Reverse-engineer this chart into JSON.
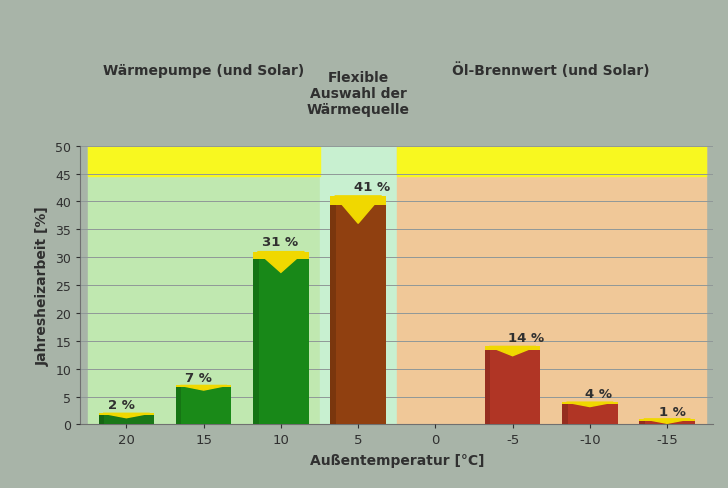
{
  "x_positions": [
    20,
    15,
    10,
    5,
    0,
    -5,
    -10,
    -15
  ],
  "values": [
    2,
    7,
    31,
    41,
    0,
    14,
    4,
    1
  ],
  "labels": [
    "2 %",
    "7 %",
    "31 %",
    "41 %",
    "",
    "14 %",
    "4 %",
    "1 %"
  ],
  "label_xoff": [
    1.2,
    1.2,
    1.2,
    0.3,
    0,
    0.3,
    0.3,
    0.5
  ],
  "label_yoff": [
    0.4,
    0.3,
    0.6,
    0.6,
    0,
    0.4,
    0.3,
    0.2
  ],
  "main_colors": [
    "#1a7818",
    "#1a8a18",
    "#188818",
    "#904010",
    null,
    "#b03525",
    "#b03525",
    "#b03525"
  ],
  "yellow_color": "#f0d800",
  "bar_width": 3.6,
  "zone_left_bg": "#c0e8b0",
  "zone_left_yellow": "#f8f820",
  "zone_mid_bg": "#c8f0d0",
  "zone_right_bg": "#f0c898",
  "zone_right_yellow": "#f8f820",
  "bg_color": "#a8b4a8",
  "title_left": "Wärmepumpe (und Solar)",
  "title_middle": "Flexible\nAuswahl der\nWärmequelle",
  "title_right": "Öl-Brennwert (und Solar)",
  "xlabel": "Außentemperatur [°C]",
  "ylabel": "Jahresheizarbeit [%]",
  "ylim": [
    0,
    50
  ],
  "yticks": [
    0,
    5,
    10,
    15,
    20,
    25,
    30,
    35,
    40,
    45,
    50
  ],
  "xticks": [
    20,
    15,
    10,
    5,
    0,
    -5,
    -10,
    -15
  ],
  "xlim_left": 23.0,
  "xlim_right": -18.0,
  "zone_left_xmin": 7.5,
  "zone_left_xmax": 22.5,
  "zone_mid_xmin": 2.5,
  "zone_mid_xmax": 7.5,
  "zone_right_xmin": -17.5,
  "zone_right_xmax": 2.5,
  "yellow_ymin": 44.5,
  "grid_color": "#909898",
  "text_color": "#303030",
  "label_fontsize": 9.5,
  "axis_label_fontsize": 10,
  "title_fontsize": 10
}
